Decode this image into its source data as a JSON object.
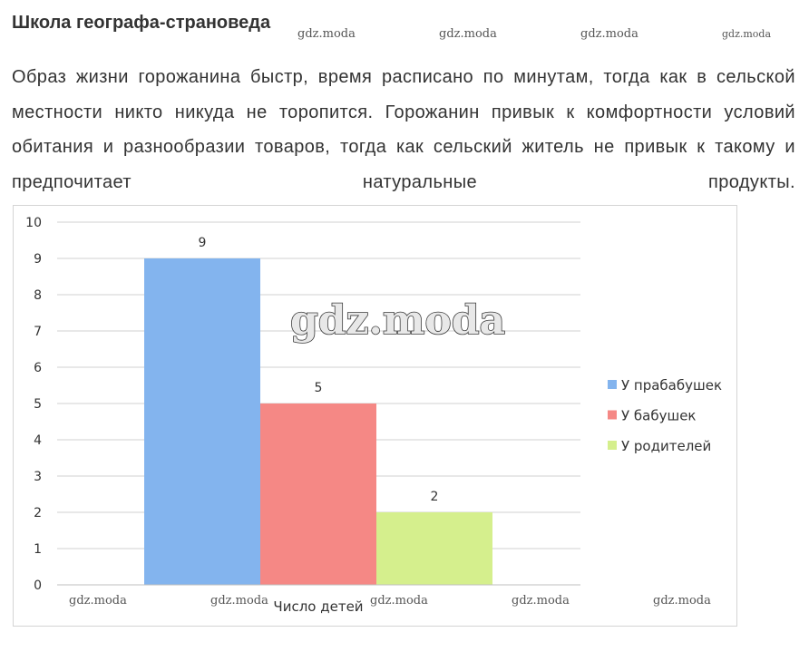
{
  "heading": "Школа географа-страноведа",
  "paragraph": "Образ жизни горожанина быстр, время расписано по минутам, тогда как в сельской местности никто никуда не торопится. Горожанин привык к комфортности условий обитания и разнообразии товаров, тогда как сельский житель не привык к такому и предпочитает натуральные продукты.",
  "watermarks": {
    "top": [
      "gdz.moda",
      "gdz.moda",
      "gdz.moda",
      "gdz.moda"
    ],
    "center": "gdz.moda",
    "bottom": [
      "gdz.moda",
      "gdz.moda",
      "gdz.moda",
      "gdz.moda",
      "gdz.moda"
    ]
  },
  "chart_data": {
    "type": "bar",
    "categories": [
      "Число детей"
    ],
    "xlabel": "Число детей",
    "ylabel": "",
    "ylim": [
      0,
      10
    ],
    "yticks": [
      0,
      1,
      2,
      3,
      4,
      5,
      6,
      7,
      8,
      9,
      10
    ],
    "grid": true,
    "legend_position": "right",
    "series": [
      {
        "name": "У прабабушек",
        "values": [
          9
        ],
        "color": "#83b4ee"
      },
      {
        "name": "У бабушек",
        "values": [
          5
        ],
        "color": "#f58885"
      },
      {
        "name": "У родителей",
        "values": [
          2
        ],
        "color": "#d5ef8d"
      }
    ]
  }
}
